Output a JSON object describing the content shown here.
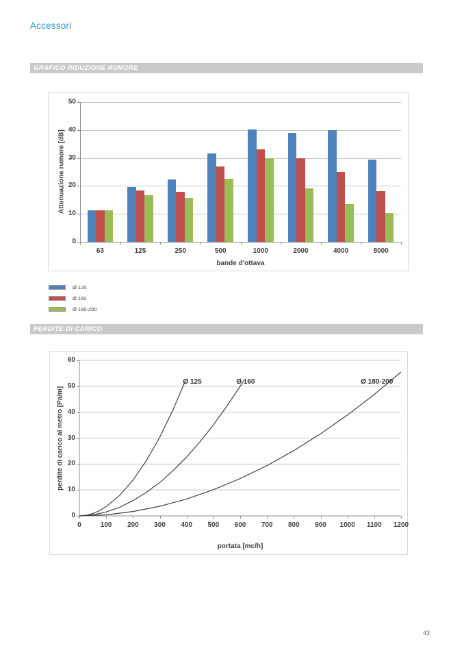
{
  "page": {
    "header": "Accessori",
    "page_number": "43"
  },
  "sections": {
    "noise_banner": "GRAFICO RIDUZIONE RUMORE",
    "pressure_banner": "PERDITE DI CARICO"
  },
  "colors": {
    "accent_text": "#2b96cc",
    "banner_bg": "#cacaca",
    "series_blue": "#4F81BD",
    "series_red": "#C0504D",
    "series_green": "#9BBB59",
    "curve_stroke": "#3f3f3f"
  },
  "chart_data": [
    {
      "type": "bar",
      "title": "",
      "categories": [
        "63",
        "125",
        "250",
        "500",
        "1000",
        "2000",
        "4000",
        "8000"
      ],
      "series": [
        {
          "name": "Ø 125",
          "color": "#4F81BD",
          "values": [
            11.2,
            19.5,
            22.4,
            31.5,
            40.2,
            39.0,
            40.0,
            29.3
          ]
        },
        {
          "name": "Ø 160",
          "color": "#C0504D",
          "values": [
            11.2,
            18.5,
            17.9,
            27.0,
            33.2,
            29.8,
            25.0,
            18.2
          ]
        },
        {
          "name": "Ø 180-200",
          "color": "#9BBB59",
          "values": [
            11.2,
            16.7,
            15.8,
            22.5,
            30.0,
            19.1,
            13.6,
            10.3
          ]
        }
      ],
      "xlabel": "bande d'ottava",
      "ylabel": "Attenuazione rumore [dB]",
      "ylim": [
        0,
        50
      ],
      "ytick_step": 10,
      "grid": true,
      "legend_position": "below-left"
    },
    {
      "type": "line",
      "title": "",
      "xlabel": "portata [mc/h]",
      "ylabel": "perdite di carico al metro [Pa/m]",
      "xlim": [
        0,
        1200
      ],
      "ylim": [
        0,
        60
      ],
      "xtick_step": 100,
      "ytick_step": 10,
      "grid": true,
      "series": [
        {
          "name": "Ø 125",
          "label_pos": [
            421,
            51.5
          ],
          "points": [
            [
              0,
              0
            ],
            [
              25,
              0.2
            ],
            [
              50,
              0.9
            ],
            [
              75,
              2.0
            ],
            [
              100,
              3.6
            ],
            [
              150,
              7.9
            ],
            [
              200,
              13.8
            ],
            [
              250,
              21.3
            ],
            [
              300,
              30.4
            ],
            [
              350,
              41.1
            ],
            [
              395,
              52.0
            ]
          ]
        },
        {
          "name": "Ø 160",
          "label_pos": [
            620,
            51.5
          ],
          "points": [
            [
              0,
              0
            ],
            [
              50,
              0.4
            ],
            [
              100,
              1.5
            ],
            [
              150,
              3.3
            ],
            [
              200,
              5.9
            ],
            [
              250,
              9.1
            ],
            [
              300,
              12.9
            ],
            [
              350,
              17.5
            ],
            [
              400,
              22.7
            ],
            [
              450,
              28.6
            ],
            [
              500,
              35.1
            ],
            [
              550,
              42.3
            ],
            [
              600,
              50.0
            ],
            [
              615,
              52.5
            ]
          ]
        },
        {
          "name": "Ø 180-200",
          "label_pos": [
            1110,
            51.5
          ],
          "points": [
            [
              0,
              0
            ],
            [
              100,
              0.4
            ],
            [
              200,
              1.7
            ],
            [
              300,
              3.7
            ],
            [
              400,
              6.5
            ],
            [
              500,
              10.1
            ],
            [
              600,
              14.4
            ],
            [
              700,
              19.4
            ],
            [
              800,
              25.2
            ],
            [
              900,
              31.7
            ],
            [
              1000,
              38.9
            ],
            [
              1100,
              46.8
            ],
            [
              1200,
              55.5
            ]
          ]
        }
      ]
    }
  ]
}
